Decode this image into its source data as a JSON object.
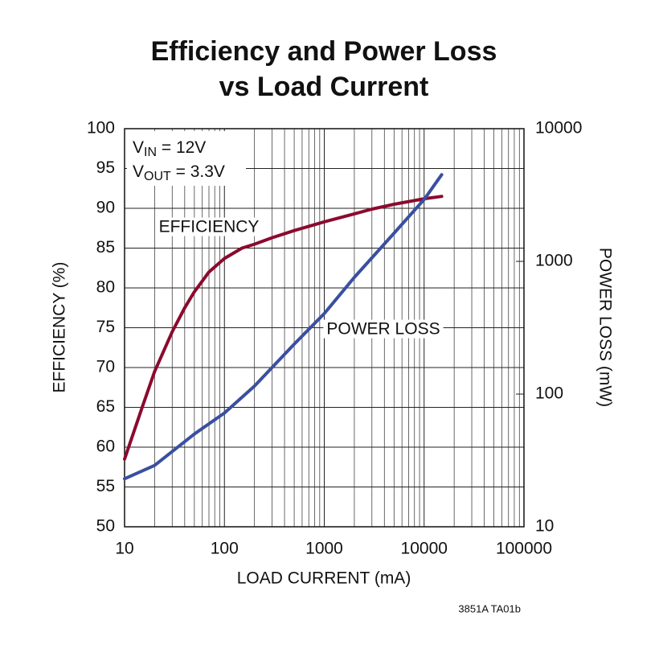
{
  "chart_data": {
    "type": "line",
    "title": [
      "Efficiency and Power Loss",
      "vs Load Current"
    ],
    "x_label": "LOAD CURRENT (mA)",
    "y_label": "EFFICIENCY (%)",
    "y2_label": "POWER LOSS (mW)",
    "annotations": [
      {
        "v": "V",
        "sub": "IN",
        "rest": " = 12V"
      },
      {
        "v": "V",
        "sub": "OUT",
        "rest": " = 3.3V"
      }
    ],
    "footnote": "3851A TA01b",
    "x_log": true,
    "y2_log": true,
    "grid": true,
    "xlim": [
      10,
      100000
    ],
    "xticks": [
      10,
      100,
      1000,
      10000,
      100000
    ],
    "ylim": [
      50,
      100
    ],
    "yticks": [
      50,
      55,
      60,
      65,
      70,
      75,
      80,
      85,
      90,
      95,
      100
    ],
    "y2lim": [
      10,
      10000
    ],
    "y2ticks": [
      10,
      100,
      1000,
      10000
    ],
    "series": [
      {
        "name": "EFFICIENCY",
        "color": "#8b0a2e",
        "x": [
          10,
          15,
          20,
          30,
          40,
          50,
          70,
          100,
          150,
          200,
          300,
          500,
          1000,
          2000,
          3000,
          5000,
          10000,
          15000
        ],
        "values": [
          58.5,
          65,
          69.5,
          74.5,
          77.5,
          79.5,
          82,
          83.7,
          85,
          85.5,
          86.3,
          87.2,
          88.3,
          89.3,
          89.9,
          90.5,
          91.2,
          91.5
        ]
      },
      {
        "name": "POWER LOSS",
        "color": "#3a4fa0",
        "axis": "y2",
        "x": [
          10,
          20,
          50,
          100,
          200,
          500,
          1000,
          2000,
          5000,
          10000,
          15000
        ],
        "values": [
          23,
          29,
          50,
          72,
          115,
          238,
          404,
          757,
          1630,
          2930,
          4500
        ]
      }
    ]
  }
}
